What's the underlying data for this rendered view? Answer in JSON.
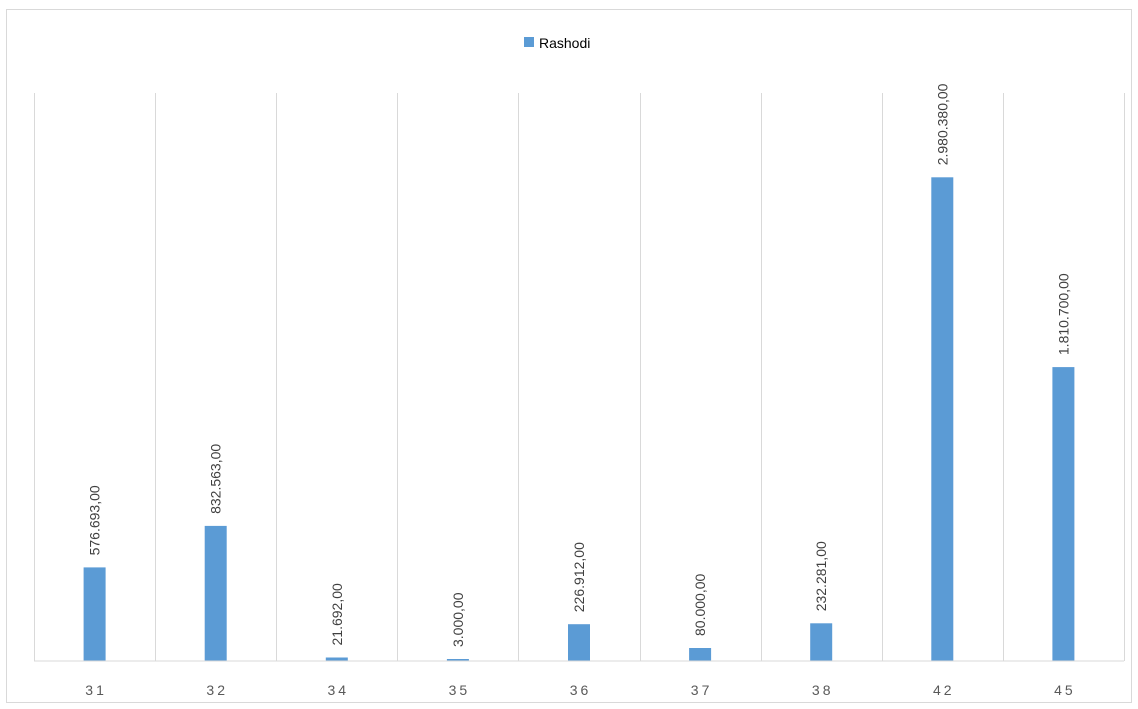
{
  "chart_data": {
    "type": "bar",
    "title": "",
    "xlabel": "",
    "ylabel": "",
    "legend_position": "top",
    "grid": "vertical",
    "categories": [
      "31",
      "32",
      "34",
      "35",
      "36",
      "37",
      "38",
      "42",
      "45"
    ],
    "series": [
      {
        "name": "Rashodi",
        "color": "#5b9bd5",
        "values": [
          576693,
          832563,
          21692,
          3000,
          226912,
          80000,
          232281,
          2980380,
          1810700
        ],
        "labels": [
          "576.693,00",
          "832.563,00",
          "21.692,00",
          "3.000,00",
          "226.912,00",
          "80.000,00",
          "232.281,00",
          "2.980.380,00",
          "1.810.700,00"
        ]
      }
    ],
    "ylim": [
      0,
      3500000
    ]
  }
}
